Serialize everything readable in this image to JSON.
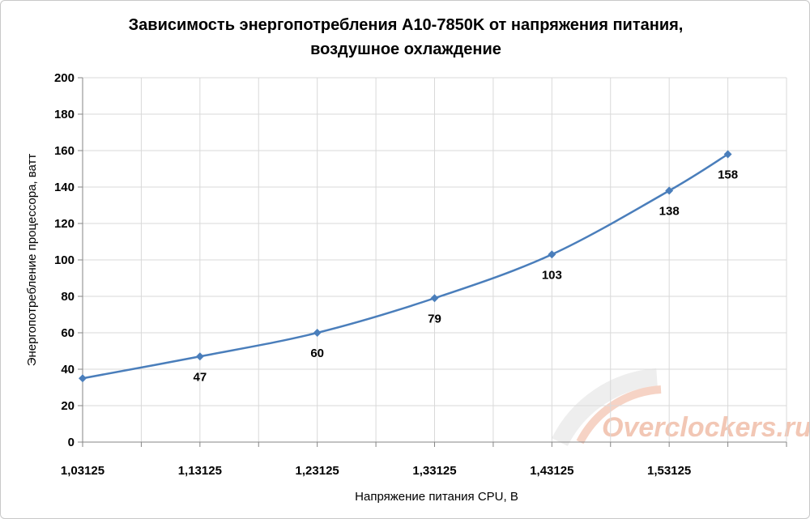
{
  "chart_data": {
    "type": "line",
    "title_line1": "Зависимость энергопотребления  A10-7850K от напряжения питания,",
    "title_line2": "воздушное охлаждение",
    "xlabel": "Напряжение питания CPU, В",
    "ylabel": "Энергопотребление процессора, ватт",
    "x_tick_labels": [
      "1,03125",
      "1,13125",
      "1,23125",
      "1,33125",
      "1,43125",
      "1,53125"
    ],
    "x_tick_values": [
      1.03125,
      1.13125,
      1.23125,
      1.33125,
      1.43125,
      1.53125
    ],
    "xlim": [
      1.03125,
      1.63125
    ],
    "ylim": [
      0,
      200
    ],
    "y_ticks": [
      0,
      20,
      40,
      60,
      80,
      100,
      120,
      140,
      160,
      180,
      200
    ],
    "grid": true,
    "series": [
      {
        "x": [
          1.03125,
          1.13125,
          1.23125,
          1.33125,
          1.43125,
          1.53125,
          1.58125
        ],
        "y": [
          35,
          47,
          60,
          79,
          103,
          138,
          158
        ],
        "data_labels": [
          "",
          "47",
          "60",
          "79",
          "103",
          "138",
          "158"
        ]
      }
    ],
    "colors": {
      "line": "#4a7ebb",
      "grid": "#d9d9d9",
      "axis": "#868686"
    },
    "watermark": "Overclockers.ru"
  }
}
